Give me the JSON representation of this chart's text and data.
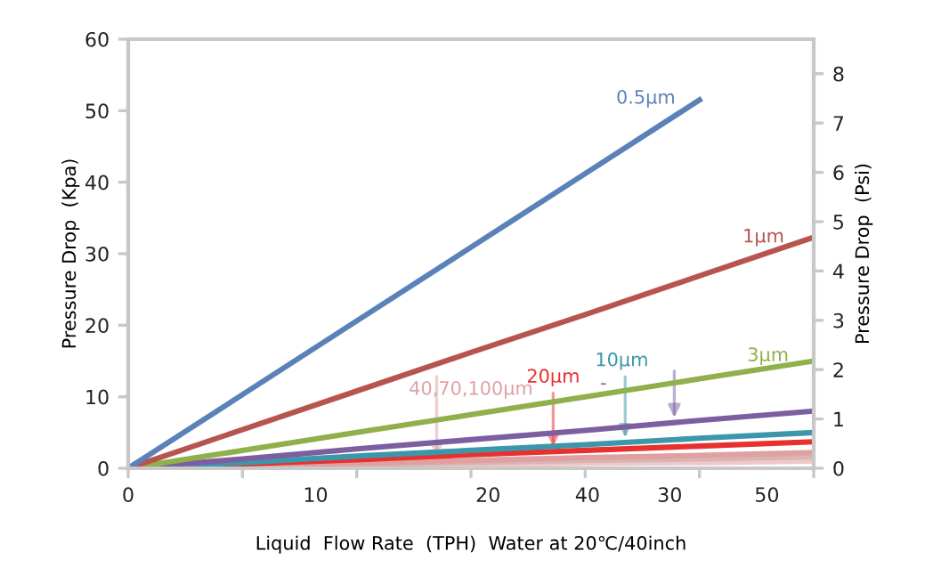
{
  "chart_data": {
    "type": "line",
    "xlabel": "Liquid  Flow Rate  (TPH)  Water at 20℃/40inch",
    "ylabel": "Pressure Drop  (Kpa)",
    "y2label": "Pressure Drop  (Psi)",
    "categories": [
      "0",
      null,
      null,
      null,
      null,
      null,
      null
    ],
    "annotations": [
      "10",
      "20",
      "40",
      "30",
      "50"
    ],
    "ylim": [
      0,
      60
    ],
    "yticks": [
      0,
      10,
      20,
      30,
      40,
      50,
      60
    ],
    "y2lim": [
      0,
      8.7
    ],
    "y2ticks": [
      0,
      1,
      2,
      3,
      4,
      5,
      6,
      7,
      8
    ],
    "grid": false,
    "legend": false,
    "marker": "none",
    "line_style": "solid",
    "series": [
      {
        "name": "0.5μm",
        "color": "#5b82b8",
        "values": [
          0,
          10.3,
          20.6,
          30.9,
          41.2,
          51.5,
          null
        ]
      },
      {
        "name": "1μm",
        "color": "#b85450",
        "values": [
          0,
          5.4,
          10.8,
          16.2,
          21.5,
          26.9,
          32.3
        ]
      },
      {
        "name": "3μm",
        "color": "#8fb04a",
        "values": [
          0,
          2.5,
          5,
          7.5,
          10,
          12.5,
          15
        ]
      },
      {
        "name": "-",
        "color": "#7b5fa0",
        "values": [
          0,
          1.3,
          2.7,
          4,
          5.3,
          6.7,
          8
        ]
      },
      {
        "name": "10μm",
        "color": "#3d97aa",
        "values": [
          0,
          0.8,
          1.7,
          2.5,
          3.3,
          4.2,
          5
        ]
      },
      {
        "name": "20μm",
        "color": "#e8312f",
        "values": [
          0,
          0.6,
          1.2,
          1.9,
          2.5,
          3.1,
          3.7
        ]
      },
      {
        "name": "40,70,100μm",
        "color": "#e0a0a0",
        "values": [
          0,
          0.4,
          0.7,
          1.1,
          1.5,
          1.8,
          2.2
        ]
      },
      {
        "color": "#d8b4b4",
        "values": [
          0,
          0.3,
          0.5,
          0.8,
          1.1,
          1.3,
          1.6
        ]
      },
      {
        "color": "#f0c8c8",
        "values": [
          0,
          0.2,
          0.3,
          0.5,
          0.7,
          0.8,
          1.0
        ]
      }
    ]
  }
}
